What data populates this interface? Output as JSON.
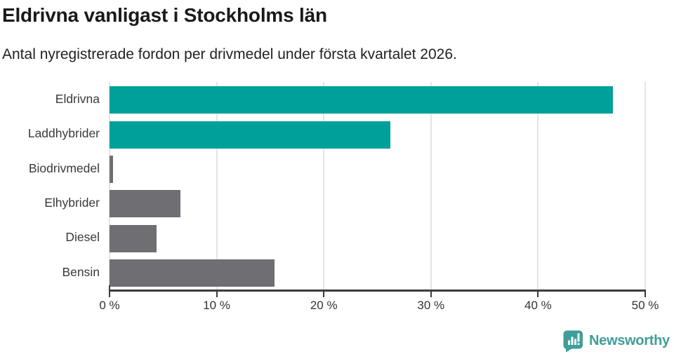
{
  "title": "Eldrivna vanligast i Stockholms län",
  "subtitle": "Antal nyregistrerade fordon per drivmedel under första kvartalet 2026.",
  "chart_data": {
    "type": "bar",
    "orientation": "horizontal",
    "categories": [
      "Eldrivna",
      "Laddhybrider",
      "Biodrivmedel",
      "Elhybrider",
      "Diesel",
      "Bensin"
    ],
    "values": [
      47.0,
      26.2,
      0.3,
      6.6,
      4.4,
      15.4
    ],
    "unit": "%",
    "xlim": [
      0,
      50
    ],
    "x_ticks": [
      0,
      10,
      20,
      30,
      40,
      50
    ],
    "x_tick_labels": [
      "0 %",
      "10 %",
      "20 %",
      "30 %",
      "40 %",
      "50 %"
    ],
    "grid": true,
    "legend": "none",
    "bar_colors": [
      "#00a09a",
      "#00a09a",
      "#6e6e73",
      "#6e6e73",
      "#6e6e73",
      "#6e6e73"
    ]
  },
  "colors": {
    "highlight": "#00a09a",
    "neutral": "#6e6e73",
    "axis": "#3c3c3c",
    "grid": "#e4e4e4",
    "title_text": "#1a1a1a",
    "body_text": "#333333",
    "brand": "#3f9e99"
  },
  "branding": {
    "logo_text": "Newsworthy",
    "logo_icon": "newsworthy-speech-bubble-barchart-icon"
  }
}
